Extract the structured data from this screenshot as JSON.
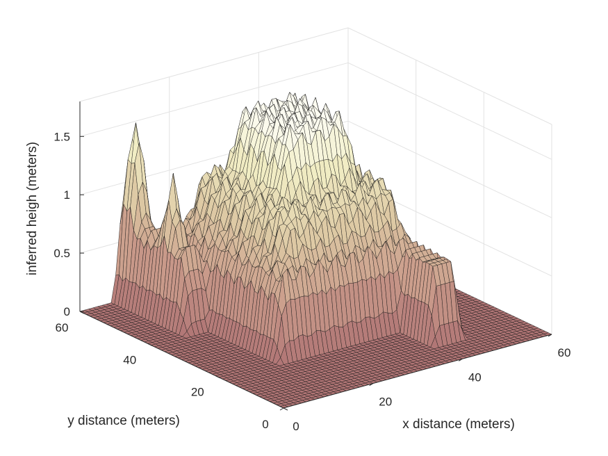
{
  "chart_data": {
    "type": "surface3d",
    "title": "",
    "xlabel": "x distance (meters)",
    "ylabel": "y distance (meters)",
    "zlabel": "inferred heigh (meters)",
    "xlim": [
      0,
      60
    ],
    "ylim": [
      0,
      60
    ],
    "zlim": [
      0,
      1.8
    ],
    "xticks": [
      "0",
      "20",
      "40",
      "60"
    ],
    "yticks": [
      "0",
      "20",
      "40",
      "60"
    ],
    "zticks": [
      "0",
      "0.5",
      "1",
      "1.5"
    ],
    "grid": true,
    "colormap": "pink",
    "colormap_stops": [
      "#b07575",
      "#c99a8a",
      "#ddc9a4",
      "#f2efc6",
      "#ffffff"
    ],
    "surface_features": [
      {
        "shape": "plateau",
        "x_range": [
          13,
          45
        ],
        "y_range": [
          18,
          52
        ],
        "levels": [
          0.6,
          1.05,
          1.6
        ]
      },
      {
        "shape": "ridge",
        "x_range": [
          8,
          14
        ],
        "y_range": [
          40,
          60
        ],
        "levels": [
          0.55,
          1.1,
          1.5
        ]
      },
      {
        "shape": "ridge",
        "x_range": [
          40,
          46
        ],
        "y_range": [
          8,
          36
        ],
        "levels": [
          0.55,
          1.05
        ]
      }
    ]
  }
}
